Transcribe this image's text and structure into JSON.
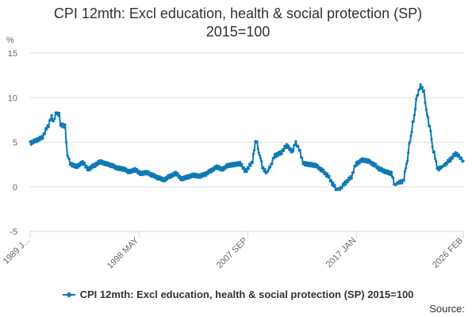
{
  "chart_data": {
    "type": "line",
    "title_line1": "CPI 12mth: Excl education, health & social protection (SP)",
    "title_line2": "2015=100",
    "ylabel": "%",
    "ylim": [
      -5,
      15
    ],
    "yticks": [
      -5,
      0,
      5,
      10,
      15
    ],
    "xlim": [
      1989.0,
      2026.17
    ],
    "xticks": [
      {
        "label": "1989 J...",
        "x": 1989.0
      },
      {
        "label": "1998 MAY",
        "x": 1998.33
      },
      {
        "label": "2007 SEP",
        "x": 2007.67
      },
      {
        "label": "2017 JAN",
        "x": 2017.0
      },
      {
        "label": "2026 FEB",
        "x": 2026.17
      }
    ],
    "grid": true,
    "color": "#0f7ab5",
    "series": [
      {
        "name": "CPI 12mth: Excl education, health & social protection (SP) 2015=100",
        "x": [
          1989.0,
          1989.5,
          1990.0,
          1990.5,
          1990.85,
          1991.0,
          1991.2,
          1991.5,
          1991.6,
          1991.75,
          1992.0,
          1992.2,
          1992.5,
          1993.0,
          1993.5,
          1994.0,
          1994.5,
          1995.0,
          1995.5,
          1996.0,
          1996.5,
          1997.0,
          1997.5,
          1998.0,
          1998.5,
          1999.0,
          1999.5,
          2000.0,
          2000.5,
          2001.0,
          2001.5,
          2002.0,
          2002.5,
          2003.0,
          2003.5,
          2004.0,
          2004.5,
          2005.0,
          2005.5,
          2006.0,
          2006.5,
          2007.0,
          2007.5,
          2008.0,
          2008.4,
          2008.7,
          2009.0,
          2009.3,
          2009.6,
          2010.0,
          2010.5,
          2011.0,
          2011.5,
          2011.8,
          2012.0,
          2012.5,
          2013.0,
          2013.5,
          2014.0,
          2014.5,
          2015.0,
          2015.3,
          2015.6,
          2016.0,
          2016.5,
          2017.0,
          2017.5,
          2018.0,
          2018.5,
          2019.0,
          2019.5,
          2020.0,
          2020.3,
          2020.6,
          2021.0,
          2021.3,
          2021.6,
          2021.9,
          2022.2,
          2022.5,
          2022.8,
          2023.0,
          2023.3,
          2023.6,
          2024.0,
          2024.3,
          2024.6,
          2025.0,
          2025.5,
          2025.8,
          2026.0,
          2026.17
        ],
        "values": [
          4.9,
          5.2,
          5.5,
          6.7,
          7.9,
          7.2,
          8.3,
          8.1,
          7.0,
          6.9,
          6.8,
          3.5,
          2.5,
          2.3,
          2.7,
          2.0,
          2.4,
          2.8,
          2.6,
          2.4,
          2.1,
          2.0,
          1.7,
          1.9,
          1.5,
          1.6,
          1.3,
          1.0,
          0.8,
          1.2,
          1.5,
          0.9,
          1.1,
          1.3,
          1.2,
          1.4,
          1.8,
          2.2,
          2.0,
          2.4,
          2.5,
          2.6,
          1.8,
          2.6,
          5.2,
          3.5,
          2.0,
          1.6,
          2.3,
          3.5,
          3.8,
          4.6,
          4.0,
          5.0,
          4.4,
          2.6,
          2.5,
          2.4,
          1.9,
          1.3,
          0.3,
          -0.3,
          -0.2,
          0.4,
          1.0,
          2.6,
          3.0,
          2.9,
          2.5,
          2.0,
          1.7,
          1.5,
          0.2,
          0.5,
          0.6,
          2.5,
          5.2,
          7.5,
          10.2,
          11.3,
          10.7,
          8.5,
          6.7,
          4.0,
          2.0,
          2.2,
          2.5,
          3.0,
          3.7,
          3.5,
          3.1,
          2.9
        ]
      }
    ]
  },
  "source_label": "Source:"
}
